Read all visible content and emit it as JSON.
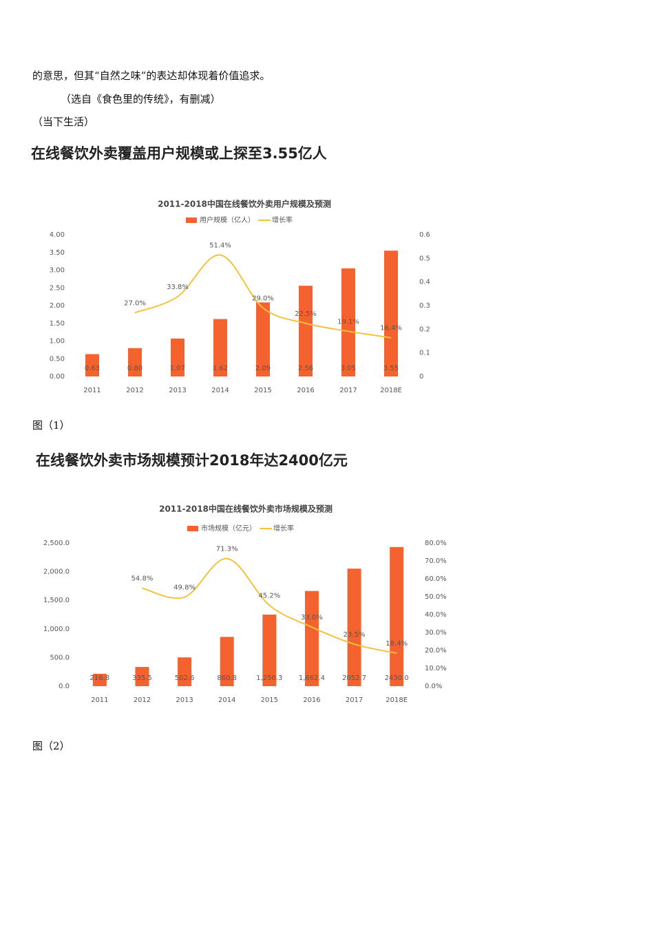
{
  "document": {
    "lines": [
      "的意思，但其“自然之味”的表达却体现着价值追求。",
      "（选自《食色里的传统》，有删减）",
      "（当下生活）"
    ],
    "heading1": "在线餐饮外卖覆盖用户规模或上探至3.55亿人",
    "caption1": "图（1）",
    "heading2": "在线餐饮外卖市场规模预计2018年达2400亿元",
    "caption2": "图（2）"
  },
  "chart_data": [
    {
      "type": "bar-line",
      "title": "2011-2018中国在线餐饮外卖用户规模及预测",
      "categories": [
        "2011",
        "2012",
        "2013",
        "2014",
        "2015",
        "2016",
        "2017",
        "2018E"
      ],
      "series": [
        {
          "name": "用户规模（亿人）",
          "color": "#f4632f",
          "values": [
            0.63,
            0.8,
            1.07,
            1.62,
            2.09,
            2.56,
            3.05,
            3.55
          ],
          "value_labels": [
            "0.63",
            "0.80",
            "1.07",
            "1.62",
            "2.09",
            "2.56",
            "3.05",
            "3.55"
          ]
        },
        {
          "name": "增长率",
          "color": "#f5c23c",
          "axis": "y2",
          "values": [
            null,
            0.27,
            0.338,
            0.514,
            0.29,
            0.225,
            0.191,
            0.164
          ],
          "value_labels": [
            null,
            "27.0%",
            "33.8%",
            "51.4%",
            "29.0%",
            "22.5%",
            "19.1%",
            "16.4%"
          ]
        }
      ],
      "ylim": [
        0,
        4
      ],
      "yticks": [
        {
          "value": 0,
          "label": "0.00"
        },
        {
          "value": 0.5,
          "label": "0.50"
        },
        {
          "value": 1,
          "label": "1.00"
        },
        {
          "value": 1.5,
          "label": "1.50"
        },
        {
          "value": 2,
          "label": "2.00"
        },
        {
          "value": 2.5,
          "label": "2.50"
        },
        {
          "value": 3,
          "label": "3.00"
        },
        {
          "value": 3.5,
          "label": "3.50"
        },
        {
          "value": 4,
          "label": "4.00"
        }
      ],
      "y2lim": [
        0,
        0.6
      ],
      "y2ticks": [
        0,
        0.1,
        0.2,
        0.3,
        0.4,
        0.5,
        0.6
      ]
    },
    {
      "type": "bar-line",
      "title": "2011-2018中国在线餐饮外卖市场规模及预测",
      "categories": [
        "2011",
        "2012",
        "2013",
        "2014",
        "2015",
        "2016",
        "2017",
        "2018E"
      ],
      "series": [
        {
          "name": "市场规模（亿元）",
          "color": "#f4632f",
          "values": [
            216.8,
            335.5,
            502.6,
            860.8,
            1250.3,
            1662.4,
            2052.7,
            2430.0
          ],
          "value_labels": [
            "216.8",
            "335.5",
            "502.6",
            "860.8",
            "1,250.3",
            "1,662.4",
            "2052.7",
            "2430.0"
          ]
        },
        {
          "name": "增长率",
          "color": "#f5c23c",
          "axis": "y2",
          "values": [
            null,
            54.8,
            49.8,
            71.3,
            45.2,
            33.0,
            23.5,
            18.4
          ],
          "value_labels": [
            null,
            "54.8%",
            "49.8%",
            "71.3%",
            "45.2%",
            "33.0%",
            "23.5%",
            "18.4%"
          ]
        }
      ],
      "ylim": [
        0,
        2500
      ],
      "yticks": [
        {
          "value": 0,
          "label": "0.0"
        },
        {
          "value": 500,
          "label": "500.0"
        },
        {
          "value": 1000,
          "label": "1,000.0"
        },
        {
          "value": 1500,
          "label": "1,500.0"
        },
        {
          "value": 2000,
          "label": "2,000.0"
        },
        {
          "value": 2500,
          "label": "2,500.0"
        }
      ],
      "y2lim": [
        0,
        80
      ],
      "y2ticks": [
        {
          "value": 0,
          "label": "0.0%"
        },
        {
          "value": 10,
          "label": "10.0%"
        },
        {
          "value": 20,
          "label": "20.0%"
        },
        {
          "value": 30,
          "label": "30.0%"
        },
        {
          "value": 40,
          "label": "40.0%"
        },
        {
          "value": 50,
          "label": "50.0%"
        },
        {
          "value": 60,
          "label": "60.0%"
        },
        {
          "value": 70,
          "label": "70.0%"
        },
        {
          "value": 80,
          "label": "80.0%"
        }
      ]
    }
  ]
}
